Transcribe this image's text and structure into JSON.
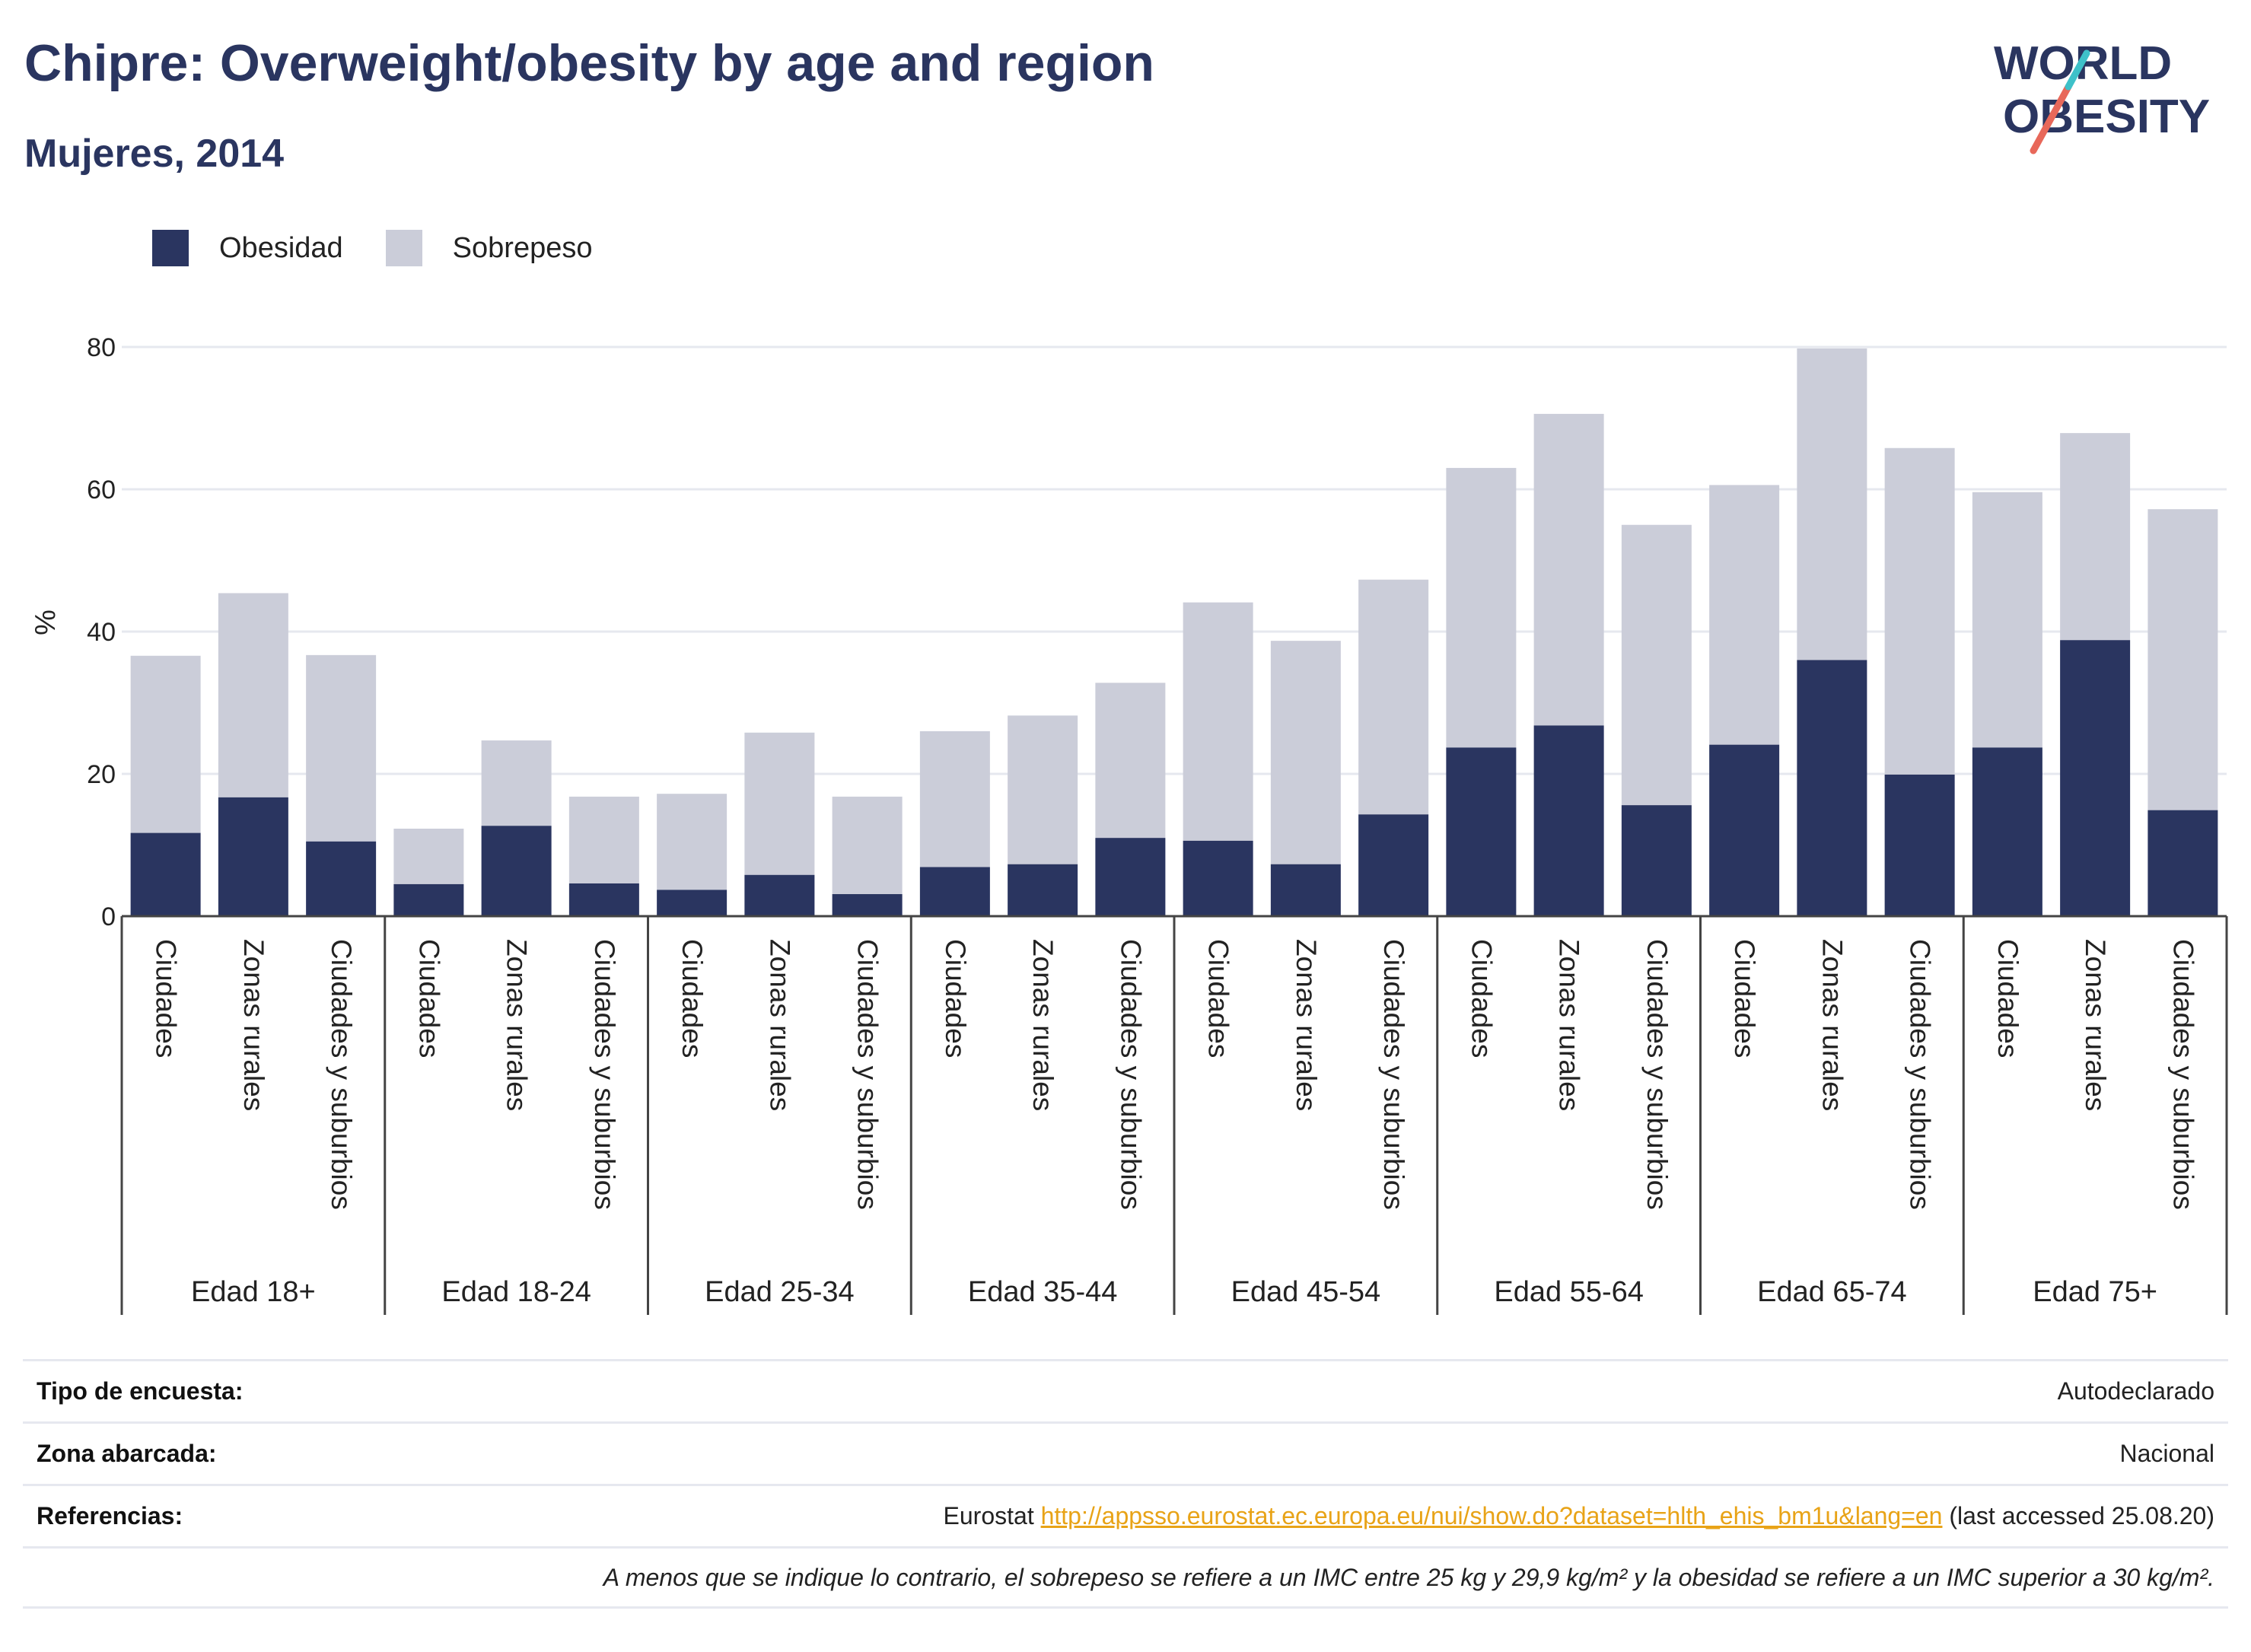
{
  "header": {
    "title": "Chipre: Overweight/obesity by age and region",
    "subtitle": "Mujeres, 2014"
  },
  "logo": {
    "line1": "WORLD",
    "line2": "OBESITY"
  },
  "legend": {
    "obesity_label": "Obesidad",
    "overweight_label": "Sobrepeso"
  },
  "colors": {
    "obesity": "#2a3560",
    "overweight": "#cbcdd9",
    "grid": "#e6e8ef",
    "axis": "#444444",
    "link": "#e8a317"
  },
  "chart_data": {
    "type": "bar",
    "stacked": true,
    "ylabel": "%",
    "ylim": [
      0,
      80
    ],
    "yticks": [
      0,
      20,
      40,
      60,
      80
    ],
    "grid": true,
    "legend_position": "top-left",
    "groups": [
      "Edad 18+",
      "Edad 18-24",
      "Edad 25-34",
      "Edad 35-44",
      "Edad 45-54",
      "Edad 55-64",
      "Edad 65-74",
      "Edad 75+"
    ],
    "subcategories": [
      "Ciudades",
      "Zonas rurales",
      "Ciudades y suburbios"
    ],
    "series": [
      {
        "name": "Obesidad",
        "values": [
          11.7,
          16.7,
          10.5,
          4.5,
          12.7,
          4.6,
          3.7,
          5.8,
          3.1,
          6.9,
          7.3,
          11.0,
          10.6,
          7.3,
          14.3,
          23.7,
          26.8,
          15.6,
          24.1,
          36.0,
          19.9,
          23.7,
          38.8,
          14.9
        ]
      },
      {
        "name": "Sobrepeso",
        "values": [
          24.9,
          28.7,
          26.2,
          7.8,
          12.0,
          12.2,
          13.5,
          20.0,
          13.7,
          19.1,
          20.9,
          21.8,
          33.5,
          31.4,
          33.0,
          39.3,
          43.8,
          39.4,
          36.5,
          43.8,
          45.9,
          35.9,
          29.1,
          42.3
        ]
      }
    ]
  },
  "info": {
    "survey_type_label": "Tipo de encuesta:",
    "survey_type_value": "Autodeclarado",
    "area_label": "Zona abarcada:",
    "area_value": "Nacional",
    "references_label": "Referencias:",
    "references_source": "Eurostat",
    "references_url": "http://appsso.eurostat.ec.europa.eu/nui/show.do?dataset=hlth_ehis_bm1u&lang=en",
    "references_accessed": "(last accessed 25.08.20)",
    "note": "A menos que se indique lo contrario, el sobrepeso se refiere a un IMC entre 25 kg y 29,9 kg/m² y la obesidad se refiere a un IMC superior a 30 kg/m²."
  }
}
